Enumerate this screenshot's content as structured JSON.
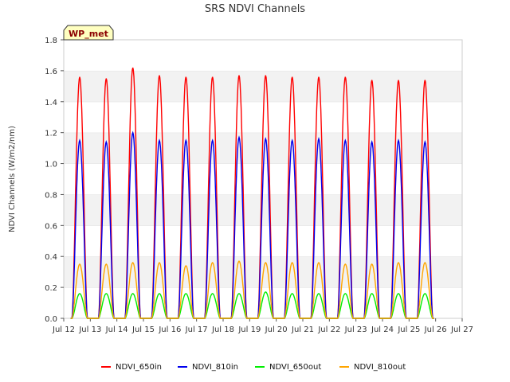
{
  "chart_data": {
    "type": "line",
    "title": "SRS NDVI Channels",
    "ylabel": "NDVI Channels (W/m2/nm)",
    "xlabel": "",
    "badge": "WP_met",
    "ylim": [
      0,
      1.8
    ],
    "xlim": [
      12,
      27
    ],
    "yticks": [
      "0.0",
      "0.2",
      "0.4",
      "0.6",
      "0.8",
      "1.0",
      "1.2",
      "1.4",
      "1.6",
      "1.8"
    ],
    "xticks": [
      "Jul 12",
      "Jul 13",
      "Jul 14",
      "Jul 15",
      "Jul 16",
      "Jul 17",
      "Jul 18",
      "Jul 19",
      "Jul 20",
      "Jul 21",
      "Jul 22",
      "Jul 23",
      "Jul 24",
      "Jul 25",
      "Jul 26",
      "Jul 27"
    ],
    "grid": "horizontal bands",
    "legend_position": "bottom",
    "day_centers": [
      12.6,
      13.6,
      14.6,
      15.6,
      16.6,
      17.6,
      18.6,
      19.6,
      20.6,
      21.6,
      22.6,
      23.6,
      24.6,
      25.6
    ],
    "series": [
      {
        "name": "NDVI_650in",
        "color": "#ff0000",
        "peaks": [
          1.56,
          1.55,
          1.62,
          1.57,
          1.56,
          1.56,
          1.57,
          1.57,
          1.56,
          1.56,
          1.56,
          1.54,
          1.54,
          1.54
        ]
      },
      {
        "name": "NDVI_810in",
        "color": "#0000ee",
        "peaks": [
          1.15,
          1.14,
          1.2,
          1.15,
          1.15,
          1.15,
          1.17,
          1.16,
          1.15,
          1.16,
          1.15,
          1.14,
          1.15,
          1.14
        ]
      },
      {
        "name": "NDVI_650out",
        "color": "#00ee00",
        "peaks": [
          0.16,
          0.16,
          0.16,
          0.16,
          0.16,
          0.16,
          0.16,
          0.17,
          0.16,
          0.16,
          0.16,
          0.16,
          0.16,
          0.16
        ]
      },
      {
        "name": "NDVI_810out",
        "color": "#ffa500",
        "peaks": [
          0.35,
          0.35,
          0.36,
          0.36,
          0.34,
          0.36,
          0.37,
          0.36,
          0.36,
          0.36,
          0.35,
          0.35,
          0.36,
          0.36
        ]
      }
    ]
  }
}
